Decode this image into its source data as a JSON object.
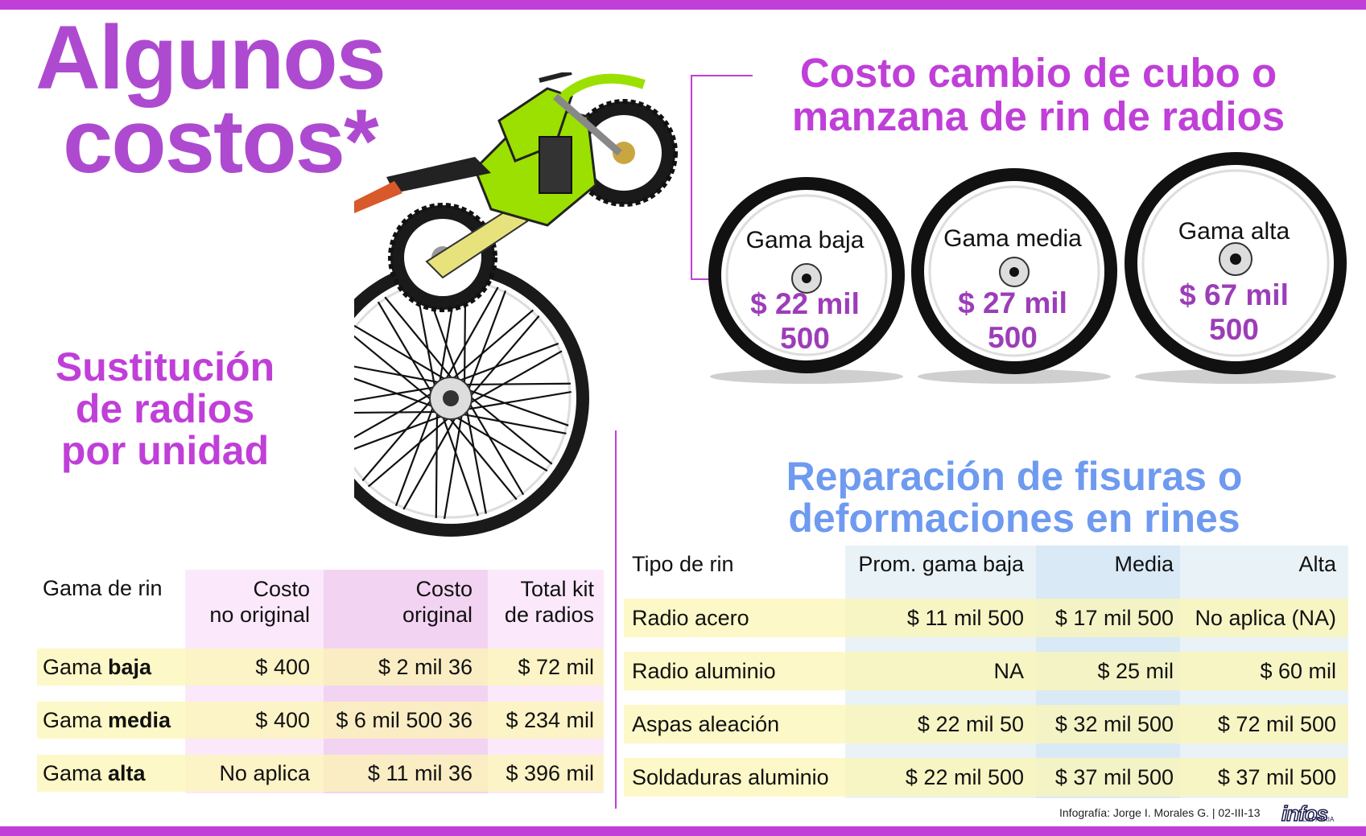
{
  "title": {
    "line1": "Algunos",
    "line2": "costos*"
  },
  "hub_section": {
    "title_line1": "Costo cambio de cubo o",
    "title_line2": "manzana de rin de radios",
    "wheels": [
      {
        "label": "Gama baja",
        "price_line1": "$ 22 mil",
        "price_line2": "500"
      },
      {
        "label": "Gama media",
        "price_line1": "$ 27 mil",
        "price_line2": "500"
      },
      {
        "label": "Gama alta",
        "price_line1": "$ 67 mil",
        "price_line2": "500"
      }
    ]
  },
  "spokes_section": {
    "title_line1": "Sustitución",
    "title_line2": "de radios",
    "title_line3": "por unidad",
    "headers": {
      "gama": "Gama de rin",
      "no_original_1": "Costo",
      "no_original_2": "no original",
      "original_1": "Costo",
      "original_2": "original",
      "kit_1": "Total kit",
      "kit_2": "de radios"
    },
    "rows": [
      {
        "prefix": "Gama ",
        "strong": "baja",
        "no_original": "$ 400",
        "original": "$ 2 mil 36",
        "kit": "$ 72 mil"
      },
      {
        "prefix": "Gama ",
        "strong": "media",
        "no_original": "$ 400",
        "original": "$ 6 mil 500 36",
        "kit": "$ 234 mil"
      },
      {
        "prefix": "Gama ",
        "strong": "alta",
        "no_original": "No aplica",
        "original": "$ 11 mil 36",
        "kit": "$ 396 mil"
      }
    ]
  },
  "repair_section": {
    "title_line1": "Reparación de fisuras o",
    "title_line2": "deformaciones en rines",
    "headers": {
      "tipo": "Tipo de rin",
      "baja": "Prom. gama baja",
      "media": "Media",
      "alta": "Alta"
    },
    "rows": [
      {
        "tipo": "Radio acero",
        "baja": "$ 11 mil 500",
        "media": "$ 17 mil 500",
        "alta": "No aplica (NA)"
      },
      {
        "tipo": "Radio aluminio",
        "baja": "NA",
        "media": "$ 25 mil",
        "alta": "$ 60 mil"
      },
      {
        "tipo": "Aspas aleación",
        "baja": "$ 22 mil 50",
        "media": "$ 32 mil 500",
        "alta": "$ 72 mil 500"
      },
      {
        "tipo": "Soldaduras aluminio",
        "baja": "$ 22 mil 500",
        "media": "$ 37 mil 500",
        "alta": "$ 37 mil 500"
      }
    ]
  },
  "footer": {
    "credit": "Infografía: Jorge I. Morales G. | 02-III-13",
    "logo": "infos",
    "logo_sub": "LA PATRIA"
  },
  "colors": {
    "purple": "#c03fd8",
    "title_purple": "#ae4ad0",
    "blue": "#6e9af0",
    "price_purple": "#9c3db8"
  }
}
